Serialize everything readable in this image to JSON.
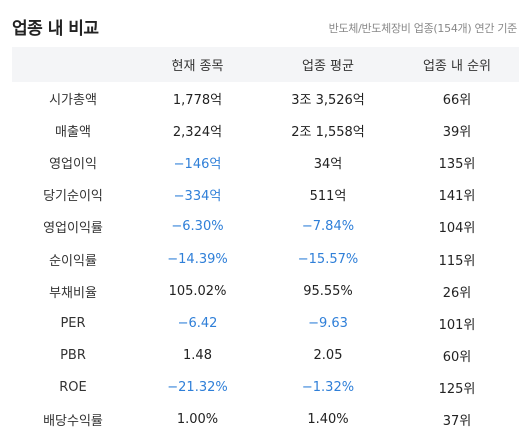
{
  "section": {
    "title": "업종 내 비교",
    "subtitle": "반도체/반도체장비 업종(154개) 연간 기준"
  },
  "table": {
    "headers": [
      "",
      "현재 종목",
      "업종 평균",
      "업종 내 순위"
    ],
    "rows": [
      {
        "label": "시가총액",
        "current": "1,778억",
        "avg": "3조 3,526억",
        "rank": "66위",
        "current_neg": false,
        "avg_neg": false
      },
      {
        "label": "매출액",
        "current": "2,324억",
        "avg": "2조 1,558억",
        "rank": "39위",
        "current_neg": false,
        "avg_neg": false
      },
      {
        "label": "영업이익",
        "current": "−146억",
        "avg": "34억",
        "rank": "135위",
        "current_neg": true,
        "avg_neg": false
      },
      {
        "label": "당기순이익",
        "current": "−334억",
        "avg": "511억",
        "rank": "141위",
        "current_neg": true,
        "avg_neg": false
      },
      {
        "label": "영업이익률",
        "current": "−6.30%",
        "avg": "−7.84%",
        "rank": "104위",
        "current_neg": true,
        "avg_neg": true
      },
      {
        "label": "순이익률",
        "current": "−14.39%",
        "avg": "−15.57%",
        "rank": "115위",
        "current_neg": true,
        "avg_neg": true
      },
      {
        "label": "부채비율",
        "current": "105.02%",
        "avg": "95.55%",
        "rank": "26위",
        "current_neg": false,
        "avg_neg": false
      },
      {
        "label": "PER",
        "current": "−6.42",
        "avg": "−9.63",
        "rank": "101위",
        "current_neg": true,
        "avg_neg": true
      },
      {
        "label": "PBR",
        "current": "1.48",
        "avg": "2.05",
        "rank": "60위",
        "current_neg": false,
        "avg_neg": false
      },
      {
        "label": "ROE",
        "current": "−21.32%",
        "avg": "−1.32%",
        "rank": "125위",
        "current_neg": true,
        "avg_neg": true
      },
      {
        "label": "배당수익률",
        "current": "1.00%",
        "avg": "1.40%",
        "rank": "37위",
        "current_neg": false,
        "avg_neg": false
      }
    ]
  },
  "colors": {
    "negative": "#2f7fd8",
    "header_bg": "#f4f5f7"
  }
}
